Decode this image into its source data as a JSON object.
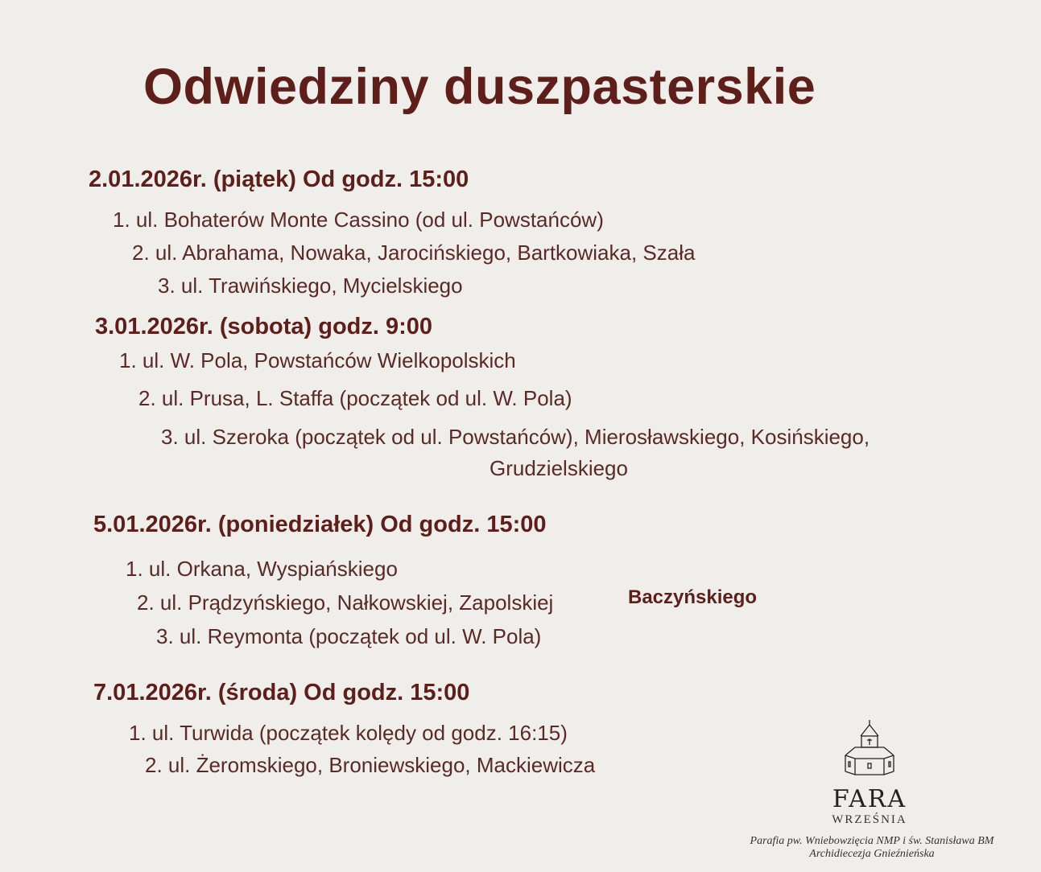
{
  "title": "Odwiedziny duszpasterskie",
  "days": [
    {
      "heading": "2.01.2026r. (piątek) Od godz. 15:00",
      "items": [
        "1. ul. Bohaterów Monte Cassino (od ul. Powstańców)",
        "2. ul. Abrahama, Nowaka, Jarocińskiego, Bartkowiaka, Szała",
        "3. ul. Trawińskiego, Mycielskiego"
      ]
    },
    {
      "heading": "3.01.2026r. (sobota) godz. 9:00",
      "items": [
        "1. ul. W. Pola, Powstańców Wielkopolskich",
        "2. ul. Prusa, L. Staffa (początek od ul. W. Pola)",
        "3. ul. Szeroka (początek od ul. Powstańców), Mierosławskiego, Kosińskiego,",
        "Grudzielskiego"
      ]
    },
    {
      "heading": "5.01.2026r. (poniedziałek) Od godz. 15:00",
      "items": [
        "1. ul. Orkana, Wyspiańskiego",
        "2. ul. Prądzyńskiego, Nałkowskiej, Zapolskiej",
        "3. ul. Reymonta (początek od ul. W. Pola)"
      ],
      "note": "Baczyńskiego"
    },
    {
      "heading": "7.01.2026r. (środa) Od godz. 15:00",
      "items": [
        "1. ul. Turwida (początek kolędy od godz. 16:15)",
        "2. ul. Żeromskiego, Broniewskiego, Mackiewicza"
      ]
    }
  ],
  "logo": {
    "name": "FARA",
    "city": "WRZEŚNIA",
    "icon": "church-icon"
  },
  "footer": {
    "line1": "Parafia pw. Wniebowzięcia NMP i św. Stanisława BM",
    "line2": "Archidiecezja Gnieźnieńska"
  },
  "colors": {
    "background": "#f0eeea",
    "text": "#5e1f1a"
  }
}
